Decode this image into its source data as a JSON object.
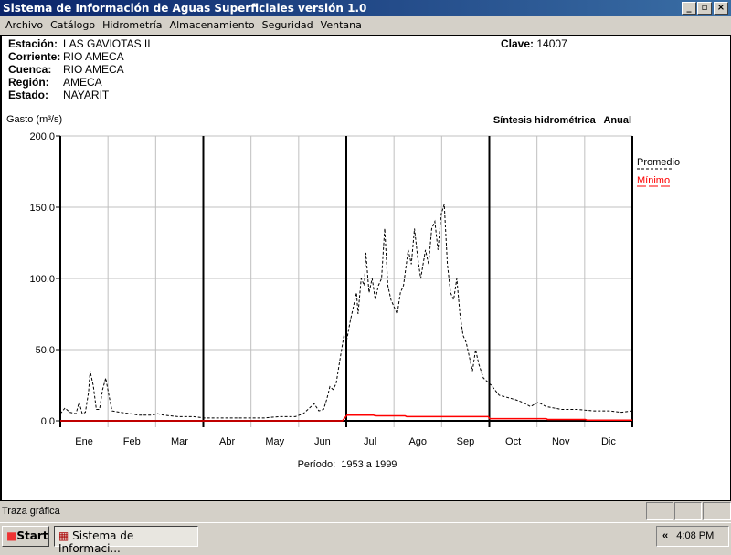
{
  "window": {
    "title": "Sistema de Información de Aguas Superficiales  versión 1.0",
    "minimize": "_",
    "restore": "▫",
    "close": "×"
  },
  "menu": [
    "Archivo",
    "Catálogo",
    "Hidrometría",
    "Almacenamiento",
    "Seguridad",
    "Ventana"
  ],
  "station": {
    "estacion_label": "Estación:",
    "estacion": "LAS GAVIOTAS II",
    "corriente_label": "Corriente:",
    "corriente": "RIO AMECA",
    "cuenca_label": "Cuenca:",
    "cuenca": "RIO AMECA",
    "region_label": "Región:",
    "region": "AMECA",
    "estado_label": "Estado:",
    "estado": "NAYARIT",
    "clave_label": "Clave:",
    "clave": "14007"
  },
  "chart_data": {
    "type": "line",
    "title": "Síntesis hidrométrica   Anual",
    "ylabel": "Gasto (m³/s)",
    "xlabel": "Período:  1953 a 1999",
    "ylim": [
      0,
      200
    ],
    "yticks": [
      "0.0",
      "50.0",
      "100.0",
      "150.0",
      "200.0"
    ],
    "months": [
      "Ene",
      "Feb",
      "Mar",
      "Abr",
      "May",
      "Jun",
      "Jul",
      "Ago",
      "Sep",
      "Oct",
      "Nov",
      "Dic"
    ],
    "xlim_days": [
      0,
      365
    ],
    "legend": "right",
    "series": [
      {
        "name": "Promedio",
        "color": "#000000",
        "style": "dashed",
        "points": [
          [
            0,
            5
          ],
          [
            3,
            9
          ],
          [
            6,
            6
          ],
          [
            10,
            5
          ],
          [
            12,
            13
          ],
          [
            14,
            5
          ],
          [
            16,
            6
          ],
          [
            18,
            20
          ],
          [
            19,
            35
          ],
          [
            21,
            25
          ],
          [
            23,
            8
          ],
          [
            25,
            8
          ],
          [
            27,
            22
          ],
          [
            29,
            30
          ],
          [
            31,
            18
          ],
          [
            33,
            7
          ],
          [
            38,
            6
          ],
          [
            45,
            5
          ],
          [
            50,
            4
          ],
          [
            58,
            4
          ],
          [
            62,
            5
          ],
          [
            66,
            4
          ],
          [
            75,
            3
          ],
          [
            85,
            3
          ],
          [
            92,
            2
          ],
          [
            100,
            2
          ],
          [
            110,
            2
          ],
          [
            120,
            2
          ],
          [
            130,
            2
          ],
          [
            140,
            3
          ],
          [
            150,
            3
          ],
          [
            155,
            5
          ],
          [
            160,
            10
          ],
          [
            162,
            12
          ],
          [
            165,
            7
          ],
          [
            168,
            8
          ],
          [
            170,
            15
          ],
          [
            172,
            24
          ],
          [
            174,
            22
          ],
          [
            176,
            26
          ],
          [
            178,
            40
          ],
          [
            181,
            60
          ],
          [
            183,
            58
          ],
          [
            185,
            70
          ],
          [
            187,
            80
          ],
          [
            189,
            90
          ],
          [
            190,
            75
          ],
          [
            192,
            100
          ],
          [
            194,
            95
          ],
          [
            195,
            118
          ],
          [
            197,
            90
          ],
          [
            199,
            100
          ],
          [
            201,
            85
          ],
          [
            203,
            95
          ],
          [
            205,
            100
          ],
          [
            207,
            135
          ],
          [
            209,
            95
          ],
          [
            211,
            85
          ],
          [
            213,
            80
          ],
          [
            215,
            75
          ],
          [
            217,
            90
          ],
          [
            219,
            95
          ],
          [
            222,
            120
          ],
          [
            224,
            110
          ],
          [
            226,
            135
          ],
          [
            228,
            115
          ],
          [
            230,
            100
          ],
          [
            233,
            120
          ],
          [
            235,
            110
          ],
          [
            237,
            135
          ],
          [
            239,
            140
          ],
          [
            241,
            120
          ],
          [
            243,
            145
          ],
          [
            245,
            152
          ],
          [
            247,
            110
          ],
          [
            249,
            90
          ],
          [
            251,
            85
          ],
          [
            253,
            100
          ],
          [
            255,
            75
          ],
          [
            257,
            60
          ],
          [
            259,
            55
          ],
          [
            261,
            45
          ],
          [
            263,
            35
          ],
          [
            265,
            50
          ],
          [
            267,
            40
          ],
          [
            270,
            30
          ],
          [
            275,
            25
          ],
          [
            280,
            18
          ],
          [
            290,
            15
          ],
          [
            295,
            13
          ],
          [
            300,
            10
          ],
          [
            305,
            13
          ],
          [
            310,
            10
          ],
          [
            320,
            8
          ],
          [
            330,
            8
          ],
          [
            340,
            7
          ],
          [
            350,
            7
          ],
          [
            358,
            6
          ],
          [
            365,
            7
          ]
        ]
      },
      {
        "name": "Mínimo",
        "color": "#ff0000",
        "style": "solid",
        "points": [
          [
            0,
            0
          ],
          [
            180,
            0
          ],
          [
            183,
            4
          ],
          [
            200,
            4
          ],
          [
            201,
            3.5
          ],
          [
            220,
            3.5
          ],
          [
            221,
            3
          ],
          [
            273,
            3
          ],
          [
            274,
            1.5
          ],
          [
            310,
            1.5
          ],
          [
            311,
            1
          ],
          [
            335,
            1
          ],
          [
            336,
            0.5
          ],
          [
            365,
            0.5
          ]
        ]
      }
    ]
  },
  "status": {
    "text": "Traza gráfica"
  },
  "taskbar": {
    "start": "Start",
    "task": "Sistema de Informaci...",
    "chevron": "«",
    "clock": "4:08 PM"
  }
}
